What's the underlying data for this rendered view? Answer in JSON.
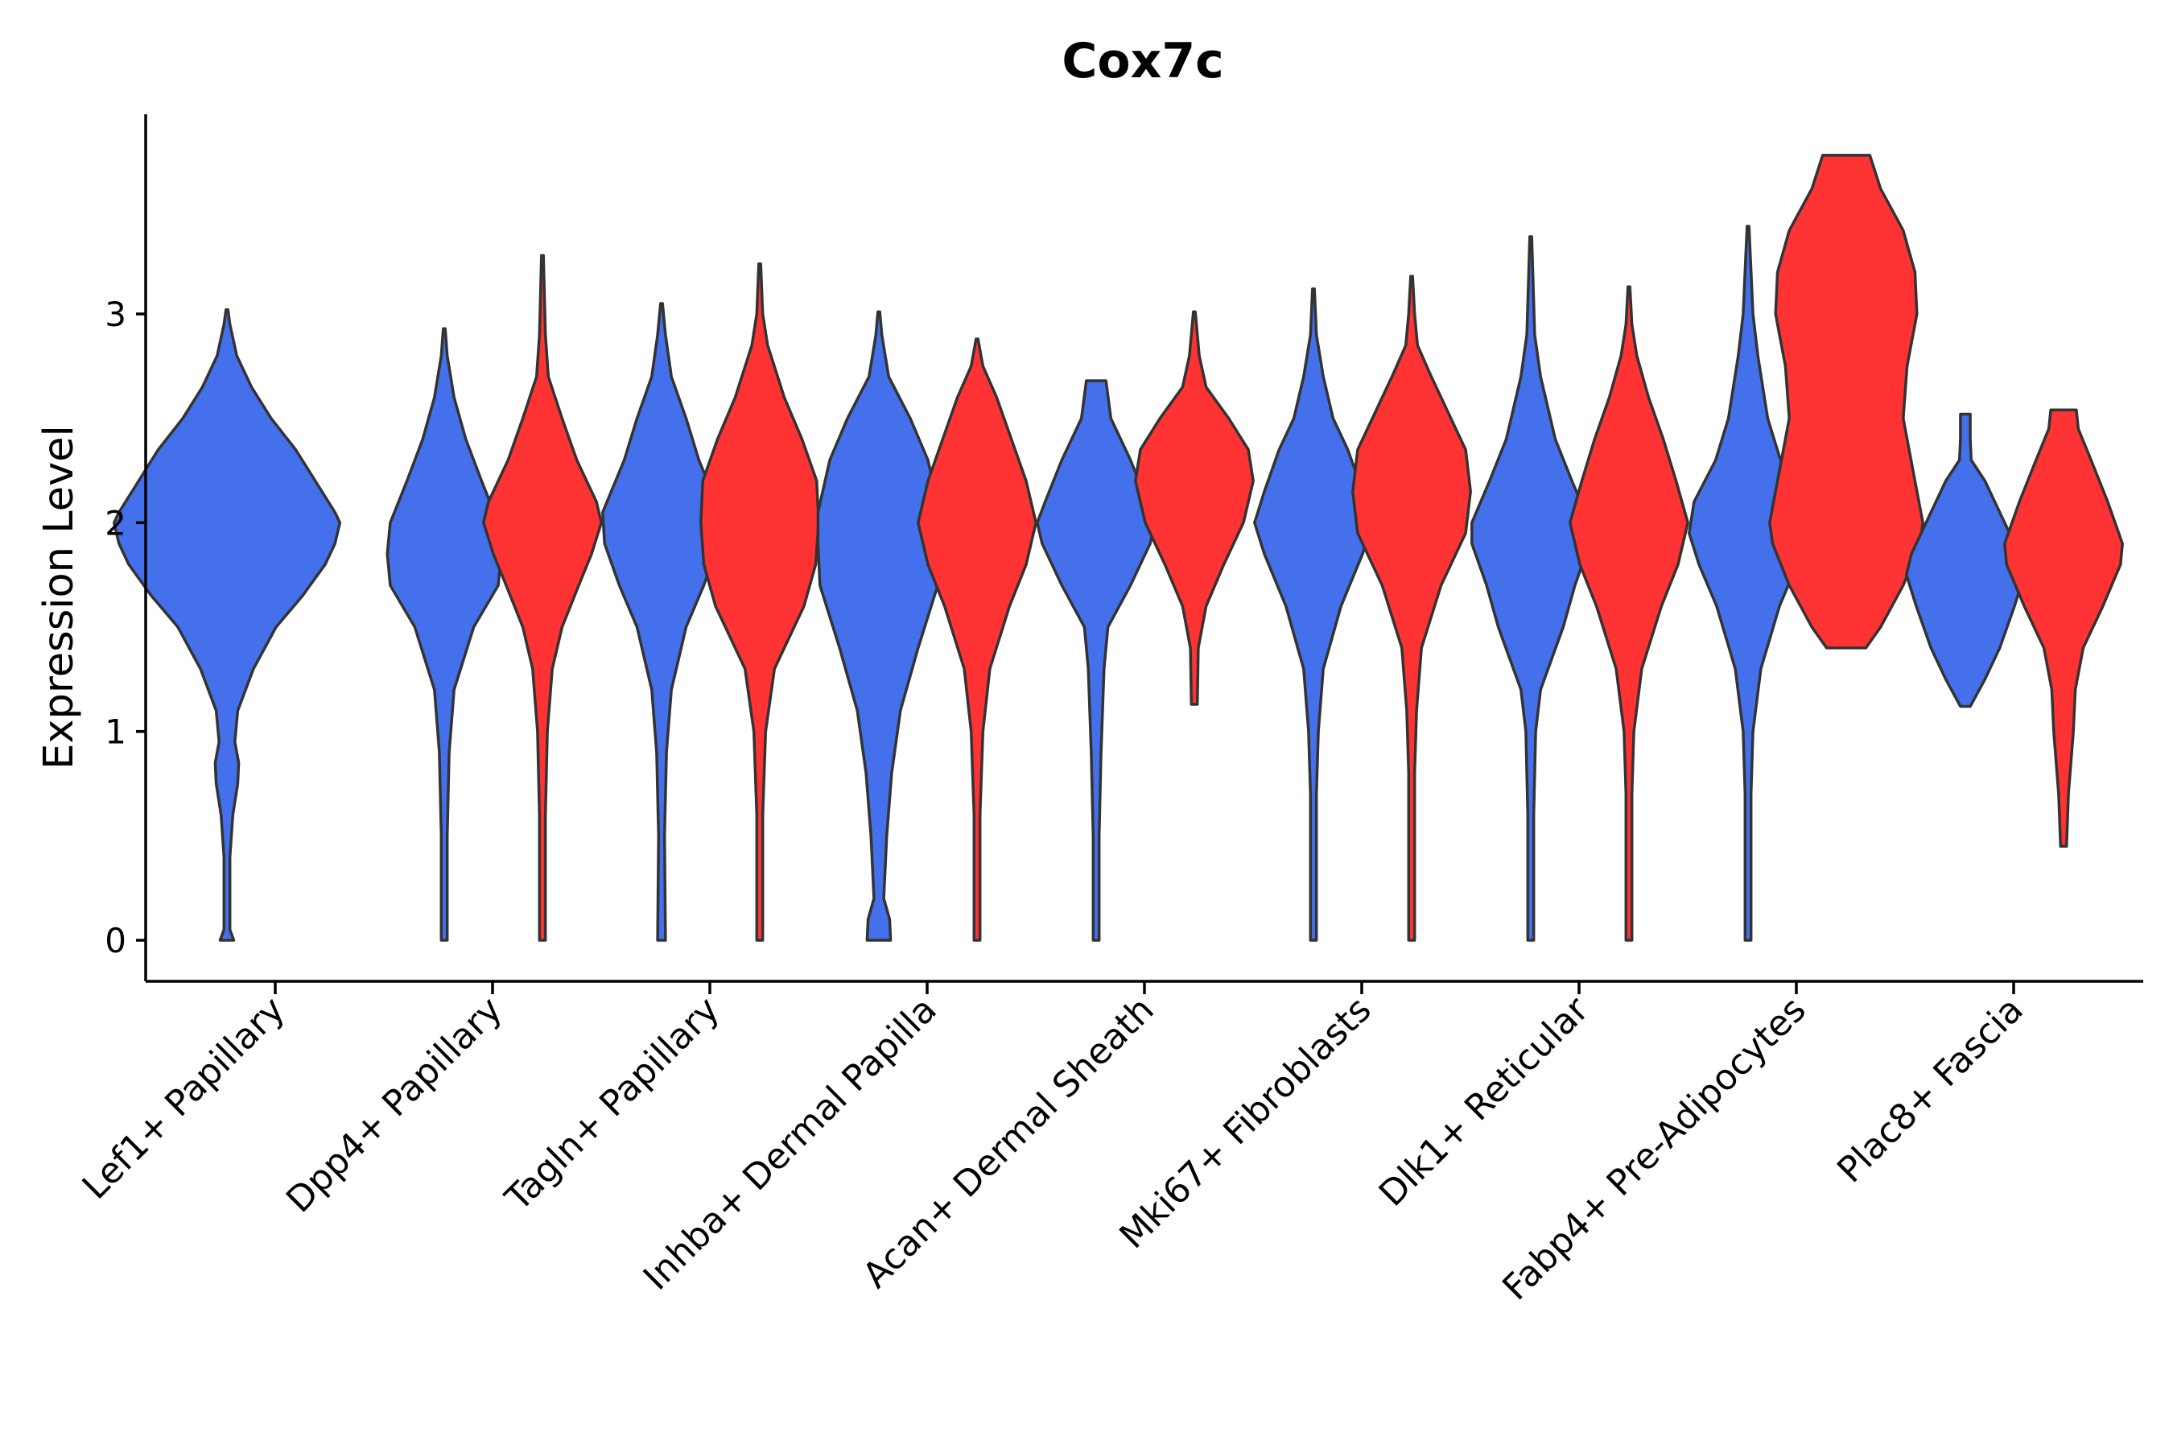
{
  "chart_data": {
    "type": "violin",
    "title": "Cox7c",
    "xlabel": "",
    "ylabel": "Expression Level",
    "ylim": [
      -0.19,
      3.96
    ],
    "yticks": [
      0,
      1,
      2,
      3
    ],
    "grid": false,
    "legend": "none",
    "colors": {
      "blue": "#4470EB",
      "red": "#FF3333",
      "outline": "#333333"
    },
    "categories": [
      "Lef1+ Papillary",
      "Dpp4+ Papillary",
      "Tagln+ Papillary",
      "Inhba+ Dermal Papilla",
      "Acan+ Dermal Sheath",
      "Mki67+ Fibroblasts",
      "Dlk1+ Reticular",
      "Fabp4+ Pre-Adipocytes",
      "Plac8+ Fascia"
    ],
    "violins": [
      {
        "category": "Lef1+ Papillary",
        "group": "blue",
        "min": 0.0,
        "max": 3.02,
        "profile": [
          [
            0,
            0.07
          ],
          [
            0.05,
            0.03
          ],
          [
            0.4,
            0.03
          ],
          [
            0.6,
            0.06
          ],
          [
            0.75,
            0.11
          ],
          [
            0.85,
            0.12
          ],
          [
            0.95,
            0.08
          ],
          [
            1.1,
            0.11
          ],
          [
            1.3,
            0.27
          ],
          [
            1.5,
            0.5
          ],
          [
            1.65,
            0.77
          ],
          [
            1.8,
            1.0
          ],
          [
            1.9,
            1.1
          ],
          [
            2.0,
            1.15
          ],
          [
            2.05,
            1.1
          ],
          [
            2.2,
            0.9
          ],
          [
            2.35,
            0.7
          ],
          [
            2.5,
            0.45
          ],
          [
            2.65,
            0.25
          ],
          [
            2.8,
            0.1
          ],
          [
            2.95,
            0.03
          ],
          [
            3.02,
            0.01
          ]
        ]
      },
      {
        "category": "Dpp4+ Papillary",
        "group": "blue",
        "min": 0.0,
        "max": 2.93,
        "profile": [
          [
            0,
            0.03
          ],
          [
            0.5,
            0.03
          ],
          [
            0.9,
            0.05
          ],
          [
            1.2,
            0.1
          ],
          [
            1.5,
            0.3
          ],
          [
            1.7,
            0.55
          ],
          [
            1.85,
            0.58
          ],
          [
            2.0,
            0.55
          ],
          [
            2.2,
            0.38
          ],
          [
            2.4,
            0.22
          ],
          [
            2.6,
            0.1
          ],
          [
            2.8,
            0.03
          ],
          [
            2.93,
            0.01
          ]
        ]
      },
      {
        "category": "Dpp4+ Papillary",
        "group": "red",
        "min": 0.0,
        "max": 3.28,
        "profile": [
          [
            0,
            0.03
          ],
          [
            0.6,
            0.03
          ],
          [
            1.0,
            0.05
          ],
          [
            1.3,
            0.1
          ],
          [
            1.5,
            0.2
          ],
          [
            1.7,
            0.37
          ],
          [
            1.85,
            0.5
          ],
          [
            2.0,
            0.6
          ],
          [
            2.1,
            0.55
          ],
          [
            2.3,
            0.35
          ],
          [
            2.5,
            0.2
          ],
          [
            2.7,
            0.06
          ],
          [
            2.9,
            0.03
          ],
          [
            3.28,
            0.01
          ]
        ]
      },
      {
        "category": "Tagln+ Papillary",
        "group": "blue",
        "min": 0.0,
        "max": 3.05,
        "profile": [
          [
            0,
            0.04
          ],
          [
            0.5,
            0.03
          ],
          [
            0.9,
            0.05
          ],
          [
            1.2,
            0.1
          ],
          [
            1.5,
            0.25
          ],
          [
            1.7,
            0.43
          ],
          [
            1.9,
            0.58
          ],
          [
            2.05,
            0.6
          ],
          [
            2.3,
            0.38
          ],
          [
            2.5,
            0.25
          ],
          [
            2.7,
            0.1
          ],
          [
            2.9,
            0.04
          ],
          [
            3.05,
            0.01
          ]
        ]
      },
      {
        "category": "Tagln+ Papillary",
        "group": "red",
        "min": 0.0,
        "max": 3.24,
        "profile": [
          [
            0,
            0.03
          ],
          [
            0.6,
            0.03
          ],
          [
            1.0,
            0.06
          ],
          [
            1.3,
            0.15
          ],
          [
            1.6,
            0.45
          ],
          [
            1.8,
            0.57
          ],
          [
            2.0,
            0.6
          ],
          [
            2.2,
            0.58
          ],
          [
            2.4,
            0.43
          ],
          [
            2.6,
            0.25
          ],
          [
            2.85,
            0.08
          ],
          [
            3.0,
            0.03
          ],
          [
            3.24,
            0.01
          ]
        ]
      },
      {
        "category": "Inhba+ Dermal Papilla",
        "group": "blue",
        "min": 0.0,
        "max": 3.01,
        "profile": [
          [
            0,
            0.12
          ],
          [
            0.1,
            0.11
          ],
          [
            0.2,
            0.05
          ],
          [
            0.5,
            0.08
          ],
          [
            0.8,
            0.13
          ],
          [
            1.1,
            0.22
          ],
          [
            1.4,
            0.4
          ],
          [
            1.7,
            0.6
          ],
          [
            1.9,
            0.62
          ],
          [
            2.05,
            0.62
          ],
          [
            2.3,
            0.5
          ],
          [
            2.5,
            0.32
          ],
          [
            2.7,
            0.1
          ],
          [
            2.9,
            0.03
          ],
          [
            3.01,
            0.01
          ]
        ]
      },
      {
        "category": "Inhba+ Dermal Papilla",
        "group": "red",
        "min": 0.0,
        "max": 2.88,
        "profile": [
          [
            0,
            0.03
          ],
          [
            0.6,
            0.03
          ],
          [
            1.0,
            0.06
          ],
          [
            1.3,
            0.13
          ],
          [
            1.6,
            0.33
          ],
          [
            1.8,
            0.5
          ],
          [
            2.0,
            0.6
          ],
          [
            2.2,
            0.5
          ],
          [
            2.4,
            0.35
          ],
          [
            2.6,
            0.2
          ],
          [
            2.75,
            0.06
          ],
          [
            2.88,
            0.01
          ]
        ]
      },
      {
        "category": "Acan+ Dermal Sheath",
        "group": "blue",
        "min": 0.0,
        "max": 2.68,
        "profile": [
          [
            0,
            0.03
          ],
          [
            0.5,
            0.03
          ],
          [
            0.9,
            0.05
          ],
          [
            1.3,
            0.08
          ],
          [
            1.5,
            0.12
          ],
          [
            1.7,
            0.35
          ],
          [
            1.9,
            0.55
          ],
          [
            2.0,
            0.6
          ],
          [
            2.1,
            0.52
          ],
          [
            2.3,
            0.35
          ],
          [
            2.5,
            0.15
          ],
          [
            2.68,
            0.1
          ]
        ]
      },
      {
        "category": "Acan+ Dermal Sheath",
        "group": "red",
        "min": 1.13,
        "max": 3.01,
        "profile": [
          [
            1.13,
            0.03
          ],
          [
            1.4,
            0.04
          ],
          [
            1.6,
            0.12
          ],
          [
            1.8,
            0.3
          ],
          [
            2.0,
            0.5
          ],
          [
            2.2,
            0.6
          ],
          [
            2.35,
            0.55
          ],
          [
            2.5,
            0.35
          ],
          [
            2.65,
            0.12
          ],
          [
            2.8,
            0.05
          ],
          [
            3.01,
            0.01
          ]
        ]
      },
      {
        "category": "Mki67+ Fibroblasts",
        "group": "blue",
        "min": 0.0,
        "max": 3.12,
        "profile": [
          [
            0,
            0.03
          ],
          [
            0.7,
            0.03
          ],
          [
            1.0,
            0.05
          ],
          [
            1.3,
            0.1
          ],
          [
            1.6,
            0.28
          ],
          [
            1.85,
            0.5
          ],
          [
            2.0,
            0.6
          ],
          [
            2.15,
            0.5
          ],
          [
            2.35,
            0.35
          ],
          [
            2.5,
            0.2
          ],
          [
            2.7,
            0.1
          ],
          [
            2.9,
            0.03
          ],
          [
            3.12,
            0.01
          ]
        ]
      },
      {
        "category": "Mki67+ Fibroblasts",
        "group": "red",
        "min": 0.0,
        "max": 3.18,
        "profile": [
          [
            0,
            0.03
          ],
          [
            0.8,
            0.03
          ],
          [
            1.1,
            0.05
          ],
          [
            1.4,
            0.1
          ],
          [
            1.7,
            0.3
          ],
          [
            1.95,
            0.55
          ],
          [
            2.15,
            0.6
          ],
          [
            2.35,
            0.55
          ],
          [
            2.5,
            0.4
          ],
          [
            2.7,
            0.2
          ],
          [
            2.85,
            0.06
          ],
          [
            3.0,
            0.03
          ],
          [
            3.18,
            0.01
          ]
        ]
      },
      {
        "category": "Dlk1+ Reticular",
        "group": "blue",
        "min": 0.0,
        "max": 3.37,
        "profile": [
          [
            0,
            0.03
          ],
          [
            0.6,
            0.03
          ],
          [
            1.0,
            0.05
          ],
          [
            1.2,
            0.1
          ],
          [
            1.5,
            0.33
          ],
          [
            1.7,
            0.45
          ],
          [
            1.9,
            0.6
          ],
          [
            2.0,
            0.6
          ],
          [
            2.2,
            0.42
          ],
          [
            2.4,
            0.25
          ],
          [
            2.7,
            0.1
          ],
          [
            2.9,
            0.04
          ],
          [
            3.37,
            0.01
          ]
        ]
      },
      {
        "category": "Dlk1+ Reticular",
        "group": "red",
        "min": 0.0,
        "max": 3.13,
        "profile": [
          [
            0,
            0.03
          ],
          [
            0.7,
            0.03
          ],
          [
            1.0,
            0.05
          ],
          [
            1.3,
            0.13
          ],
          [
            1.6,
            0.33
          ],
          [
            1.8,
            0.5
          ],
          [
            2.0,
            0.6
          ],
          [
            2.2,
            0.48
          ],
          [
            2.4,
            0.35
          ],
          [
            2.6,
            0.2
          ],
          [
            2.8,
            0.08
          ],
          [
            2.95,
            0.03
          ],
          [
            3.13,
            0.01
          ]
        ]
      },
      {
        "category": "Fabp4+ Pre-Adipocytes",
        "group": "blue",
        "min": 0.0,
        "max": 3.42,
        "profile": [
          [
            0,
            0.03
          ],
          [
            0.7,
            0.03
          ],
          [
            1.0,
            0.05
          ],
          [
            1.3,
            0.13
          ],
          [
            1.6,
            0.32
          ],
          [
            1.8,
            0.5
          ],
          [
            1.95,
            0.6
          ],
          [
            2.1,
            0.55
          ],
          [
            2.3,
            0.33
          ],
          [
            2.5,
            0.2
          ],
          [
            2.8,
            0.1
          ],
          [
            3.0,
            0.05
          ],
          [
            3.42,
            0.01
          ]
        ]
      },
      {
        "category": "Fabp4+ Pre-Adipocytes",
        "group": "red",
        "min": 1.4,
        "max": 3.76,
        "profile": [
          [
            1.4,
            0.2
          ],
          [
            1.5,
            0.35
          ],
          [
            1.7,
            0.58
          ],
          [
            1.9,
            0.75
          ],
          [
            2.0,
            0.78
          ],
          [
            2.2,
            0.7
          ],
          [
            2.5,
            0.58
          ],
          [
            2.75,
            0.62
          ],
          [
            3.0,
            0.72
          ],
          [
            3.2,
            0.7
          ],
          [
            3.4,
            0.58
          ],
          [
            3.6,
            0.35
          ],
          [
            3.76,
            0.24
          ]
        ]
      },
      {
        "category": "Plac8+ Fascia",
        "group": "blue",
        "min": 1.12,
        "max": 2.52,
        "profile": [
          [
            1.12,
            0.05
          ],
          [
            1.25,
            0.2
          ],
          [
            1.4,
            0.35
          ],
          [
            1.6,
            0.5
          ],
          [
            1.75,
            0.6
          ],
          [
            1.85,
            0.55
          ],
          [
            2.0,
            0.4
          ],
          [
            2.2,
            0.2
          ],
          [
            2.3,
            0.06
          ],
          [
            2.4,
            0.05
          ],
          [
            2.52,
            0.05
          ]
        ]
      },
      {
        "category": "Plac8+ Fascia",
        "group": "red",
        "min": 0.45,
        "max": 2.54,
        "profile": [
          [
            0.45,
            0.03
          ],
          [
            0.7,
            0.05
          ],
          [
            1.0,
            0.1
          ],
          [
            1.2,
            0.12
          ],
          [
            1.4,
            0.2
          ],
          [
            1.6,
            0.4
          ],
          [
            1.8,
            0.58
          ],
          [
            1.9,
            0.6
          ],
          [
            2.1,
            0.45
          ],
          [
            2.3,
            0.28
          ],
          [
            2.45,
            0.15
          ],
          [
            2.54,
            0.13
          ]
        ]
      }
    ]
  }
}
